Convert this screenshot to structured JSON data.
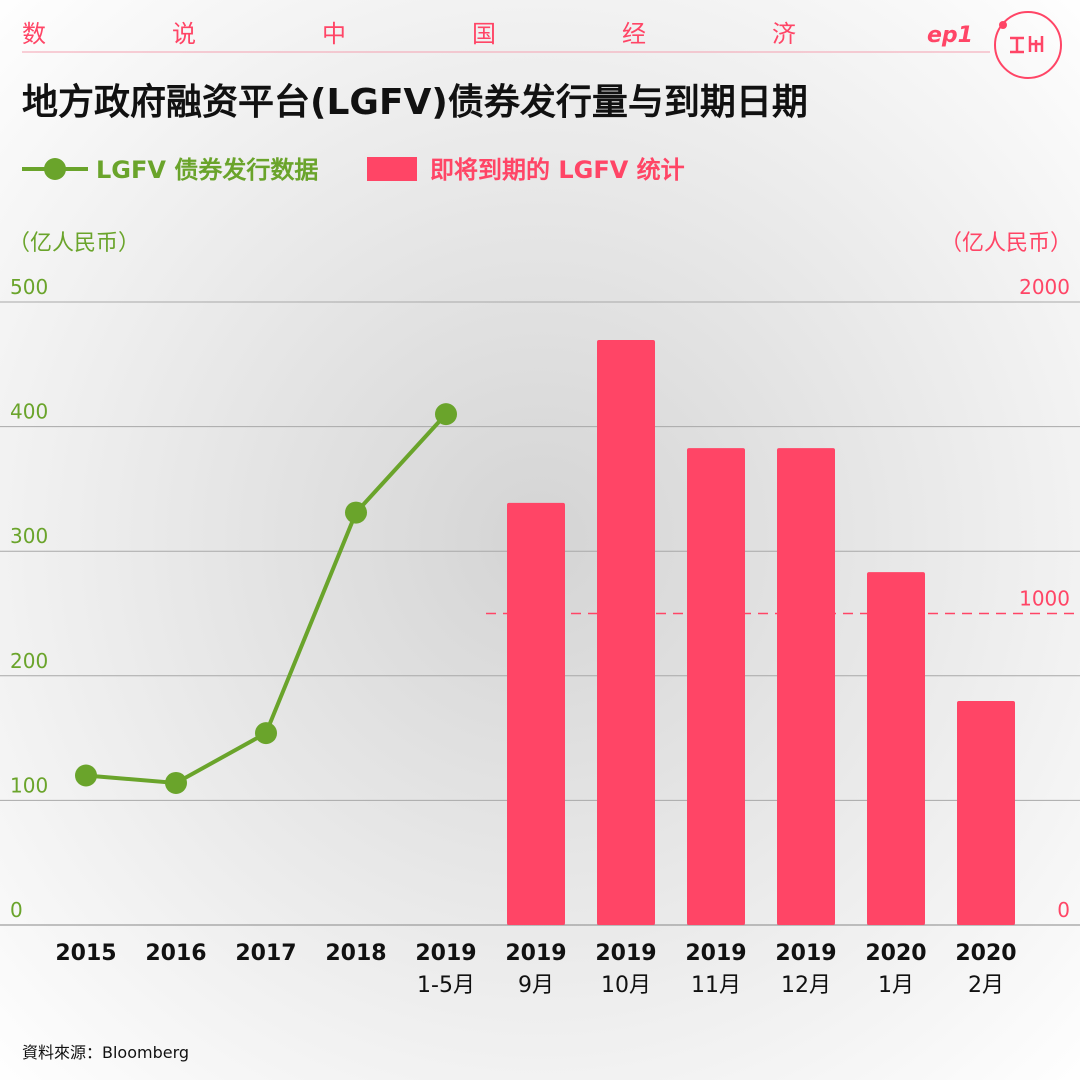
{
  "header": {
    "series_title": "数说中国经济",
    "episode": "ep1"
  },
  "chart_data": {
    "type": "bar_line",
    "title": "地方政府融资平台(LGFV)债券发行量与到期日期",
    "y_label": "（亿人民币）",
    "y2_label": "（亿人民币）",
    "categories": [
      "2015",
      "2016",
      "2017",
      "2018",
      "2019",
      "2019",
      "2019",
      "2019",
      "2019",
      "2020",
      "2020"
    ],
    "category_months": [
      null,
      null,
      null,
      null,
      "1-5月",
      "9月",
      "10月",
      "11月",
      "12月",
      "1月",
      "2月"
    ],
    "series": [
      {
        "name": "LGFV 债券发行数据",
        "type": "line",
        "color": "#6aa42b",
        "axis": "y",
        "values": [
          120,
          114,
          154,
          331,
          410,
          null,
          null,
          null,
          null,
          null,
          null
        ]
      },
      {
        "name": "即将到期的 LGFV 统计",
        "type": "bar",
        "color": "#ff4566",
        "axis": "y2",
        "values": [
          null,
          null,
          null,
          null,
          null,
          1355,
          1878,
          1531,
          1531,
          1133,
          719
        ]
      }
    ],
    "ylim": [
      0,
      500
    ],
    "yticks": [
      0,
      100,
      200,
      300,
      400,
      500
    ],
    "y2lim": [
      0,
      2000
    ],
    "y2ticks": [
      0,
      1000,
      2000
    ],
    "grid": true,
    "source": "資料來源：Bloomberg"
  }
}
